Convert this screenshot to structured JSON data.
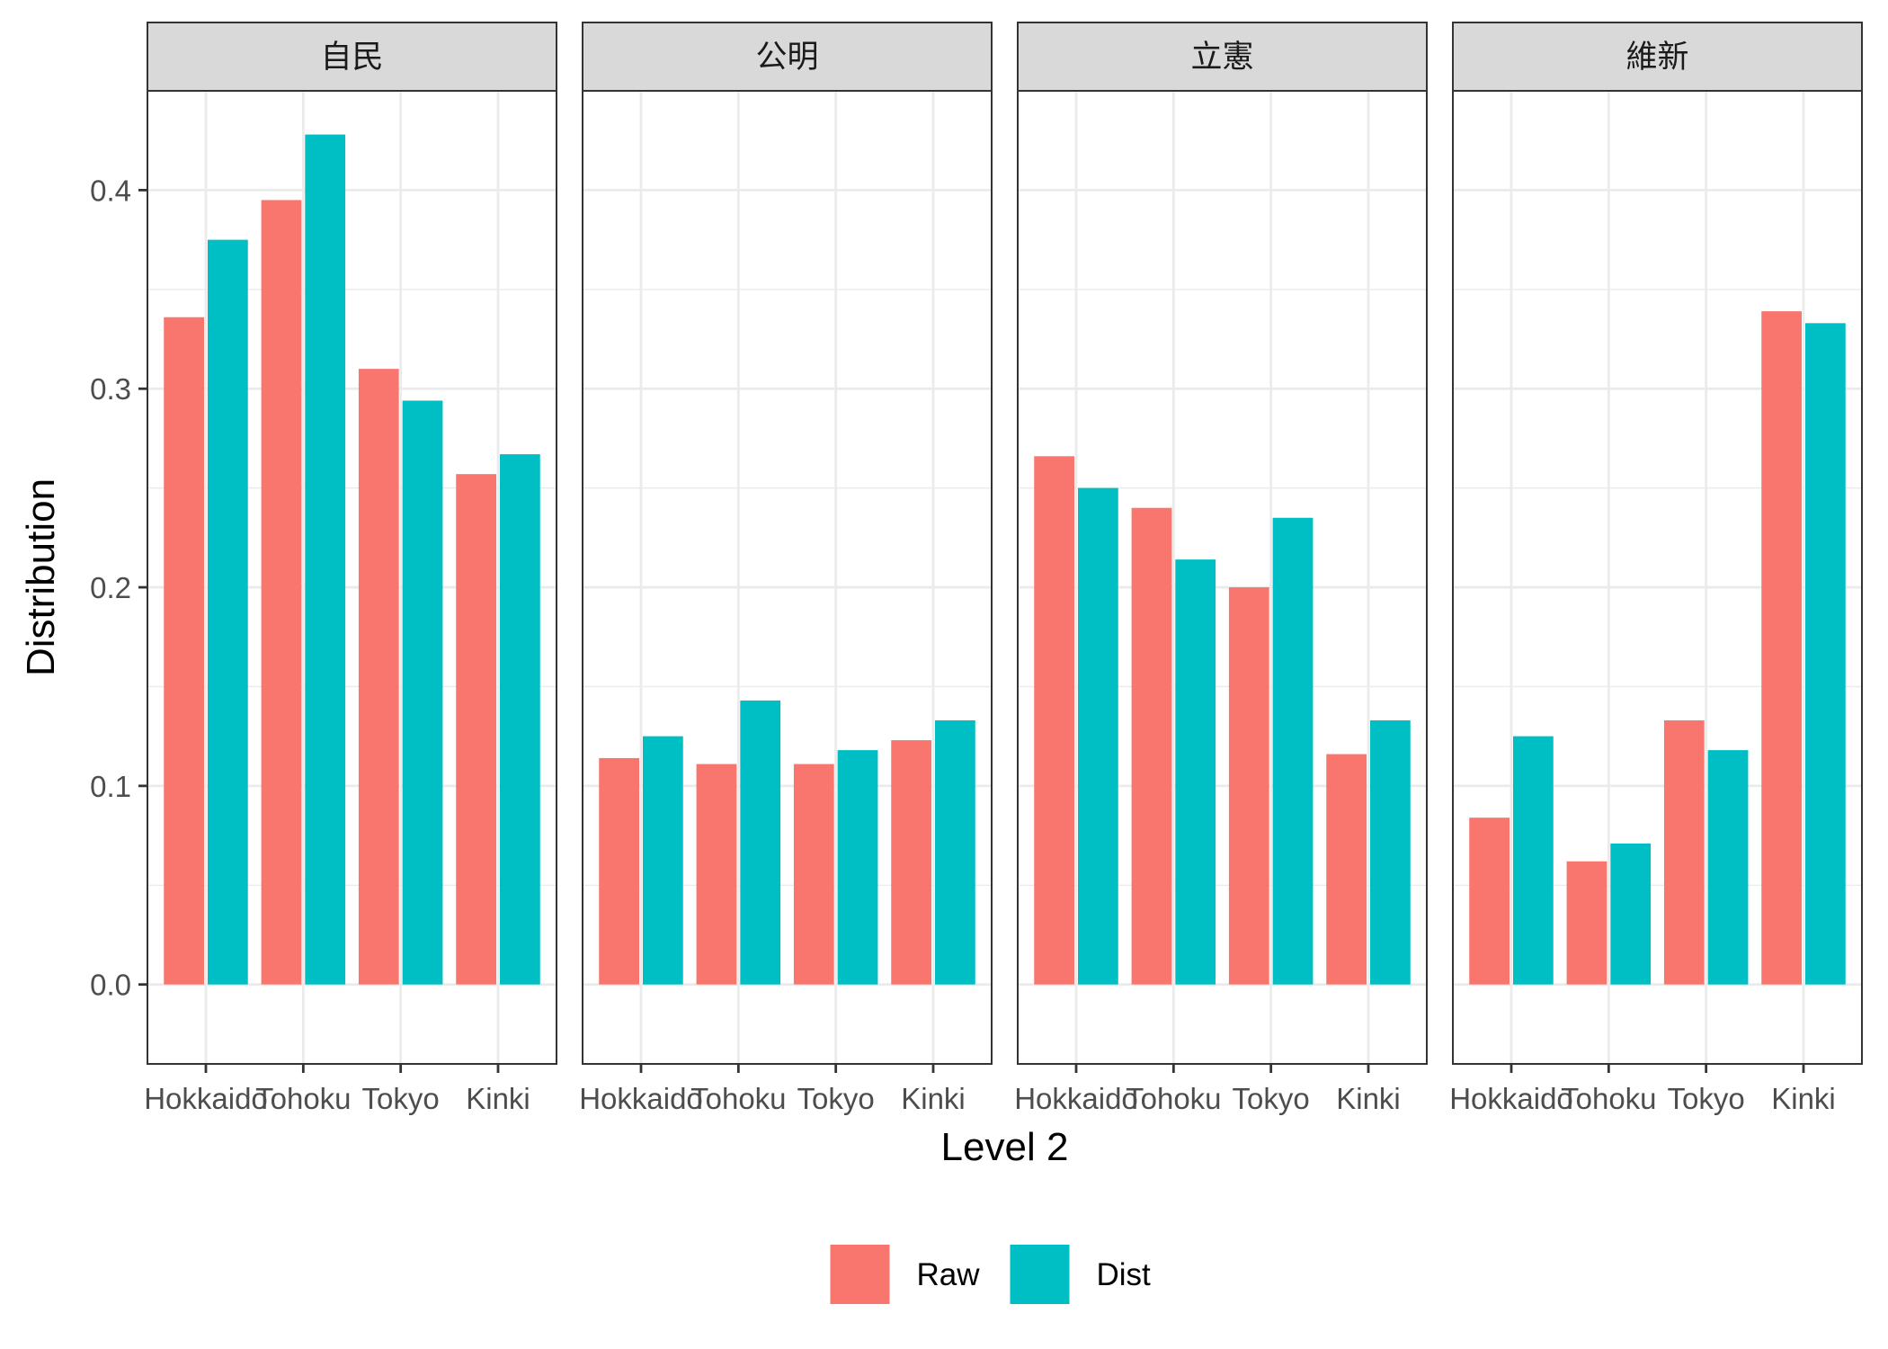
{
  "chart_data": {
    "type": "bar",
    "facet_by": "party",
    "facets": [
      "自民",
      "公明",
      "立憲",
      "維新"
    ],
    "categories": [
      "Hokkaido",
      "Tohoku",
      "Tokyo",
      "Kinki"
    ],
    "xlabel": "Level 2",
    "ylabel": "Distribution",
    "ylim": [
      -0.04,
      0.45
    ],
    "yticks": [
      0.0,
      0.1,
      0.2,
      0.3,
      0.4
    ],
    "ytick_labels": [
      "0.0",
      "0.1",
      "0.2",
      "0.3",
      "0.4"
    ],
    "grid": true,
    "legend_position": "bottom",
    "series": [
      {
        "name": "Raw",
        "color": "#F8766D",
        "values": {
          "自民": [
            0.336,
            0.395,
            0.31,
            0.257
          ],
          "公明": [
            0.114,
            0.111,
            0.111,
            0.123
          ],
          "立憲": [
            0.266,
            0.24,
            0.2,
            0.116
          ],
          "維新": [
            0.084,
            0.062,
            0.133,
            0.339
          ]
        }
      },
      {
        "name": "Dist",
        "color": "#00BFC4",
        "values": {
          "自民": [
            0.375,
            0.428,
            0.294,
            0.267
          ],
          "公明": [
            0.125,
            0.143,
            0.118,
            0.133
          ],
          "立憲": [
            0.25,
            0.214,
            0.235,
            0.133
          ],
          "維新": [
            0.125,
            0.071,
            0.118,
            0.333
          ]
        }
      }
    ]
  }
}
